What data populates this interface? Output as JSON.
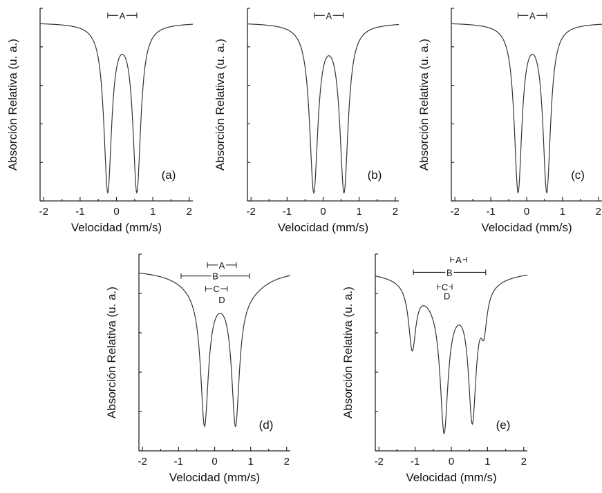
{
  "chart_data": [
    {
      "id": "a",
      "type": "line",
      "panel_label": "(a)",
      "xlabel": "Velocidad (mm/s)",
      "ylabel": "Absorción Relativa (u. a.)",
      "xlim": [
        -2.1,
        2.1
      ],
      "x_ticks": [
        "-2",
        "-1",
        "0",
        "1",
        "2"
      ],
      "baseline": 1.0,
      "ylim": [
        0.0,
        1.08
      ],
      "series": [
        {
          "lines": [
            {
              "center": -0.24,
              "depth": 0.93,
              "hwhm": 0.13
            },
            {
              "center": 0.56,
              "depth": 0.93,
              "hwhm": 0.13
            }
          ]
        }
      ],
      "components": [
        {
          "label": "A",
          "center": 0.16,
          "half_width": 0.4,
          "level": 1.04
        }
      ]
    },
    {
      "id": "b",
      "type": "line",
      "panel_label": "(b)",
      "xlabel": "Velocidad (mm/s)",
      "ylabel": "Absorción Relativa (u. a.)",
      "xlim": [
        -2.1,
        2.1
      ],
      "x_ticks": [
        "-2",
        "-1",
        "0",
        "1",
        "2"
      ],
      "baseline": 1.0,
      "ylim": [
        0.0,
        1.08
      ],
      "series": [
        {
          "lines": [
            {
              "center": -0.26,
              "depth": 0.93,
              "hwhm": 0.14
            },
            {
              "center": 0.58,
              "depth": 0.93,
              "hwhm": 0.14
            }
          ]
        }
      ],
      "components": [
        {
          "label": "A",
          "center": 0.16,
          "half_width": 0.4,
          "level": 1.04
        }
      ]
    },
    {
      "id": "c",
      "type": "line",
      "panel_label": "(c)",
      "xlabel": "Velocidad (mm/s)",
      "ylabel": "Absorción Relativa (u. a.)",
      "xlim": [
        -2.1,
        2.1
      ],
      "x_ticks": [
        "-2",
        "-1",
        "0",
        "1",
        "2"
      ],
      "baseline": 1.0,
      "ylim": [
        0.0,
        1.08
      ],
      "series": [
        {
          "lines": [
            {
              "center": -0.24,
              "depth": 0.93,
              "hwhm": 0.13
            },
            {
              "center": 0.56,
              "depth": 0.93,
              "hwhm": 0.13
            }
          ]
        }
      ],
      "components": [
        {
          "label": "A",
          "center": 0.16,
          "half_width": 0.4,
          "level": 1.04
        }
      ]
    },
    {
      "id": "d",
      "type": "line",
      "panel_label": "(d)",
      "xlabel": "Velocidad (mm/s)",
      "ylabel": "Absorción Relativa (u. a.)",
      "xlim": [
        -2.1,
        2.1
      ],
      "x_ticks": [
        "-2",
        "-1",
        "0",
        "1",
        "2"
      ],
      "baseline": 1.0,
      "ylim": [
        0.0,
        1.08
      ],
      "series": [
        {
          "lines": [
            {
              "center": -0.28,
              "depth": 0.72,
              "hwhm": 0.13
            },
            {
              "center": 0.58,
              "depth": 0.72,
              "hwhm": 0.13
            },
            {
              "center": -0.3,
              "depth": 0.1,
              "hwhm": 0.7
            },
            {
              "center": 0.8,
              "depth": 0.1,
              "hwhm": 0.7
            }
          ]
        }
      ],
      "components": [
        {
          "label": "A",
          "center": 0.2,
          "half_width": 0.4,
          "level": 1.02
        },
        {
          "label": "B",
          "center": 0.02,
          "half_width": 0.95,
          "level": 0.96
        },
        {
          "label": "C",
          "center": 0.05,
          "half_width": 0.3,
          "level": 0.89
        },
        {
          "label": "D",
          "center": 0.2,
          "half_width": 0.08,
          "level": 0.83
        }
      ]
    },
    {
      "id": "e",
      "type": "line",
      "panel_label": "(e)",
      "xlabel": "Velocidad (mm/s)",
      "ylabel": "Absorción Relativa (u. a.)",
      "xlim": [
        -2.1,
        2.1
      ],
      "x_ticks": [
        "-2",
        "-1",
        "0",
        "1",
        "2"
      ],
      "baseline": 1.0,
      "ylim": [
        0.0,
        1.08
      ],
      "series": [
        {
          "lines": [
            {
              "center": -0.2,
              "depth": 0.7,
              "hwhm": 0.13
            },
            {
              "center": 0.58,
              "depth": 0.7,
              "hwhm": 0.13
            },
            {
              "center": -1.08,
              "depth": 0.35,
              "hwhm": 0.12
            },
            {
              "center": 0.9,
              "depth": 0.2,
              "hwhm": 0.1
            },
            {
              "center": -0.1,
              "depth": 0.18,
              "hwhm": 0.9
            }
          ]
        }
      ],
      "components": [
        {
          "label": "A",
          "center": 0.2,
          "half_width": 0.22,
          "level": 1.05
        },
        {
          "label": "B",
          "center": -0.05,
          "half_width": 1.0,
          "level": 0.98
        },
        {
          "label": "C",
          "center": -0.18,
          "half_width": 0.2,
          "level": 0.9
        },
        {
          "label": "D",
          "center": -0.12,
          "half_width": 0.08,
          "level": 0.85
        }
      ]
    }
  ]
}
